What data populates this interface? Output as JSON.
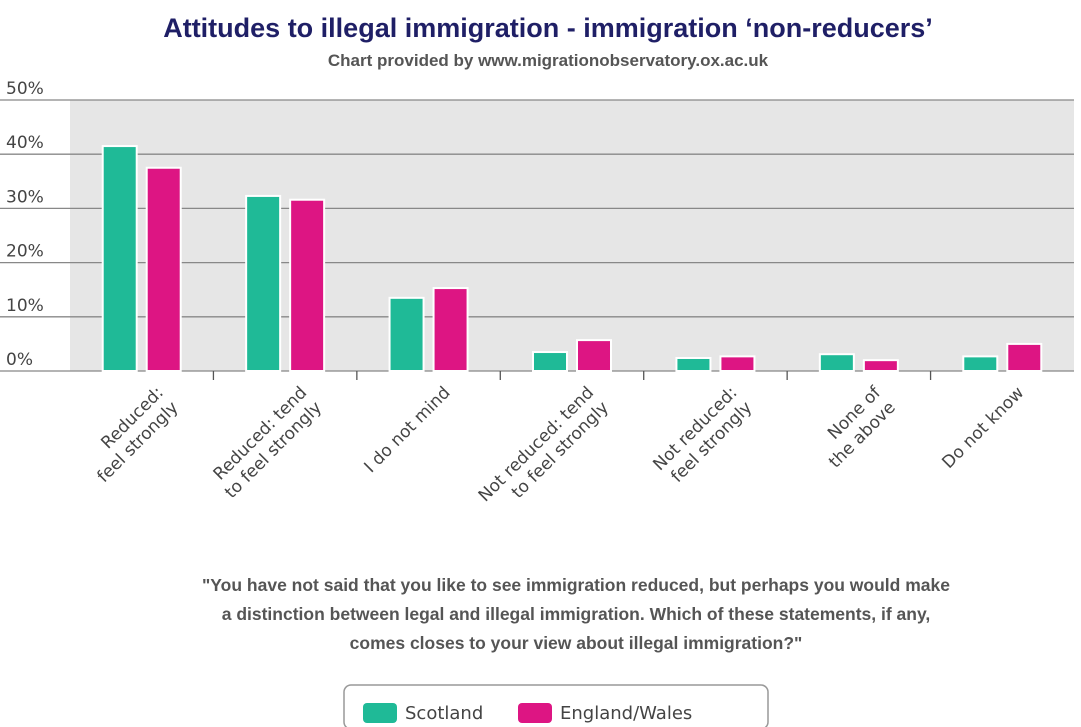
{
  "chart_data": {
    "type": "bar",
    "title": "Attitudes to illegal immigration - immigration ‘non-reducers’",
    "subtitle": "Chart provided by www.migrationobservatory.ox.ac.uk",
    "xlabel": "",
    "ylabel": "",
    "ylim": [
      0,
      50
    ],
    "yticks": [
      "0%",
      "10%",
      "20%",
      "30%",
      "40%",
      "50%"
    ],
    "grid": true,
    "legend_position": "bottom",
    "categories": [
      [
        "Reduced:",
        "feel strongly"
      ],
      [
        "Reduced: tend",
        "to feel strongly"
      ],
      [
        "I do not mind"
      ],
      [
        "Not reduced: tend",
        "to feel strongly"
      ],
      [
        "Not reduced:",
        "feel strongly"
      ],
      [
        "None of",
        "the above"
      ],
      [
        "Do not know"
      ]
    ],
    "series": [
      {
        "name": "Scotland",
        "color": "#1fba97",
        "values": [
          41.5,
          32.3,
          13.5,
          3.5,
          2.4,
          3.1,
          2.7
        ]
      },
      {
        "name": "England/Wales",
        "color": "#dd1583",
        "values": [
          37.5,
          31.6,
          15.3,
          5.7,
          2.7,
          2.0,
          5.0
        ]
      }
    ],
    "note_lines": [
      "\"You have not said that you like to see immigration reduced, but perhaps you would make",
      "a distinction between legal and illegal immigration. Which of these statements, if any,",
      "comes closes to your view about illegal immigration?\""
    ]
  },
  "colors": {
    "title": "#1f1f66",
    "plot_background": "#e6e6e6",
    "grid": "#888888"
  }
}
